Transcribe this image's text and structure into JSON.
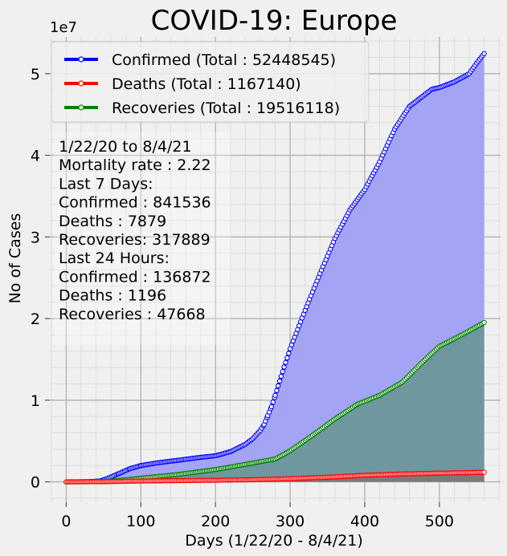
{
  "chart_data": {
    "type": "line",
    "title": "COVID-19: Europe",
    "xlabel": "Days (1/22/20 - 8/4/21)",
    "ylabel": "No of Cases",
    "y_multiplier_label": "1e7",
    "xlim": [
      -22,
      582
    ],
    "ylim": [
      -2500000,
      54500000
    ],
    "x_ticks": [
      0,
      100,
      200,
      300,
      400,
      500
    ],
    "x_tick_labels": [
      "0",
      "100",
      "200",
      "300",
      "400",
      "500"
    ],
    "y_ticks": [
      0,
      10000000,
      20000000,
      30000000,
      40000000,
      50000000
    ],
    "y_tick_labels": [
      "0",
      "1",
      "2",
      "3",
      "4",
      "5"
    ],
    "grid": true,
    "legend_position": "top-left",
    "filled_area": true,
    "series": [
      {
        "name": "Confirmed (Total : 52448545)",
        "color": "#0000ff",
        "fill": "#a4a4f5",
        "x": [
          0,
          30,
          45,
          55,
          70,
          85,
          100,
          120,
          150,
          180,
          200,
          220,
          240,
          250,
          260,
          265,
          270,
          275,
          280,
          290,
          300,
          320,
          340,
          360,
          380,
          400,
          420,
          440,
          460,
          480,
          490,
          500,
          520,
          540,
          550,
          560
        ],
        "y": [
          0,
          20000,
          100000,
          400000,
          1000000,
          1600000,
          2000000,
          2300000,
          2650000,
          3000000,
          3200000,
          3700000,
          4600000,
          5300000,
          6300000,
          7000000,
          8100000,
          9200000,
          10600000,
          13500000,
          16300000,
          21000000,
          25500000,
          29800000,
          33300000,
          35800000,
          39200000,
          43200000,
          46000000,
          47400000,
          48100000,
          48300000,
          49000000,
          50000000,
          51300000,
          52448545
        ]
      },
      {
        "name": "Deaths (Total : 1167140)",
        "color": "#ff0000",
        "fill": "#7a7a7a",
        "x": [
          0,
          50,
          100,
          150,
          200,
          250,
          300,
          350,
          400,
          450,
          500,
          560
        ],
        "y": [
          0,
          20000,
          100000,
          150000,
          200000,
          260000,
          380000,
          560000,
          800000,
          960000,
          1060000,
          1167140
        ]
      },
      {
        "name": "Recoveries (Total : 19516118)",
        "color": "#008000",
        "fill": "#6f97a0",
        "x": [
          0,
          50,
          80,
          100,
          150,
          200,
          250,
          280,
          300,
          330,
          360,
          390,
          420,
          450,
          480,
          500,
          530,
          560
        ],
        "y": [
          0,
          30000,
          250000,
          450000,
          900000,
          1500000,
          2300000,
          2800000,
          3800000,
          5700000,
          7700000,
          9500000,
          10600000,
          12200000,
          14900000,
          16600000,
          18000000,
          19516118
        ]
      }
    ],
    "annotation": [
      "1/22/20 to 8/4/21",
      "Mortality rate : 2.22",
      "Last 7 Days:",
      "Confirmed : 841536",
      "Deaths : 7879",
      "Recoveries: 317889",
      "Last 24 Hours:",
      "Confirmed : 136872",
      "Deaths : 1196",
      "Recoveries : 47668"
    ]
  }
}
